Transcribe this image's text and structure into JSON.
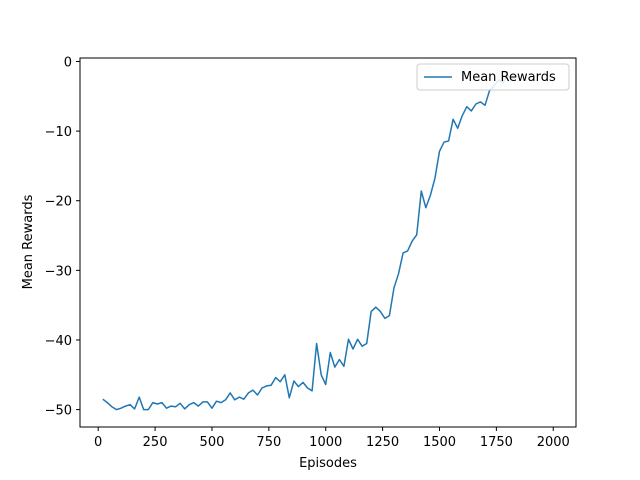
{
  "chart_data": {
    "type": "line",
    "title": "",
    "xlabel": "Episodes",
    "ylabel": "Mean Rewards",
    "xlim": [
      -80,
      2100
    ],
    "ylim": [
      -52.5,
      0.5
    ],
    "xticks": [
      0,
      250,
      500,
      750,
      1000,
      1250,
      1500,
      1750,
      2000
    ],
    "xtick_labels": [
      "0",
      "250",
      "500",
      "750",
      "1000",
      "1250",
      "1500",
      "1750",
      "2000"
    ],
    "yticks": [
      0,
      -10,
      -20,
      -30,
      -40,
      -50
    ],
    "ytick_labels": [
      "0",
      "−10",
      "−20",
      "−30",
      "−40",
      "−50"
    ],
    "grid": false,
    "legend_position": "top-right",
    "color": "#1f77b4",
    "series": [
      {
        "name": "Mean Rewards",
        "x": [
          20,
          40,
          60,
          80,
          100,
          120,
          140,
          160,
          180,
          200,
          220,
          240,
          260,
          280,
          300,
          320,
          340,
          360,
          380,
          400,
          420,
          440,
          460,
          480,
          500,
          520,
          540,
          560,
          580,
          600,
          620,
          640,
          660,
          680,
          700,
          720,
          740,
          760,
          780,
          800,
          820,
          840,
          860,
          880,
          900,
          920,
          940,
          960,
          980,
          1000,
          1020,
          1040,
          1060,
          1080,
          1100,
          1120,
          1140,
          1160,
          1180,
          1200,
          1220,
          1240,
          1260,
          1280,
          1300,
          1320,
          1340,
          1360,
          1380,
          1400,
          1420,
          1440,
          1460,
          1480,
          1500,
          1520,
          1540,
          1560,
          1580,
          1600,
          1620,
          1640,
          1660,
          1680,
          1700,
          1720,
          1740,
          1760,
          1780,
          1800,
          1820,
          1840
        ],
        "y": [
          -48.5,
          -49.0,
          -49.6,
          -50.0,
          -49.8,
          -49.5,
          -49.3,
          -49.9,
          -48.2,
          -50.0,
          -50.0,
          -49.0,
          -49.2,
          -49.0,
          -49.8,
          -49.5,
          -49.6,
          -49.1,
          -49.9,
          -49.3,
          -49.0,
          -49.5,
          -48.9,
          -48.9,
          -49.8,
          -48.8,
          -49.0,
          -48.6,
          -47.6,
          -48.6,
          -48.2,
          -48.5,
          -47.6,
          -47.2,
          -47.9,
          -46.9,
          -46.6,
          -46.5,
          -45.4,
          -46.0,
          -45.0,
          -48.3,
          -45.9,
          -46.7,
          -46.1,
          -46.9,
          -47.3,
          -40.5,
          -45.0,
          -46.4,
          -41.8,
          -43.9,
          -42.8,
          -43.8,
          -39.9,
          -41.3,
          -39.9,
          -40.9,
          -40.5,
          -35.9,
          -35.3,
          -35.9,
          -36.9,
          -36.5,
          -32.5,
          -30.5,
          -27.5,
          -27.2,
          -25.8,
          -24.9,
          -18.6,
          -21.0,
          -19.2,
          -16.8,
          -12.9,
          -11.6,
          -11.4,
          -8.3,
          -9.6,
          -7.8,
          -6.5,
          -7.1,
          -6.1,
          -5.8,
          -6.3,
          -4.2,
          -3.5,
          -2.7,
          -3.0,
          -2.0,
          -2.6,
          -2.0
        ]
      }
    ]
  }
}
